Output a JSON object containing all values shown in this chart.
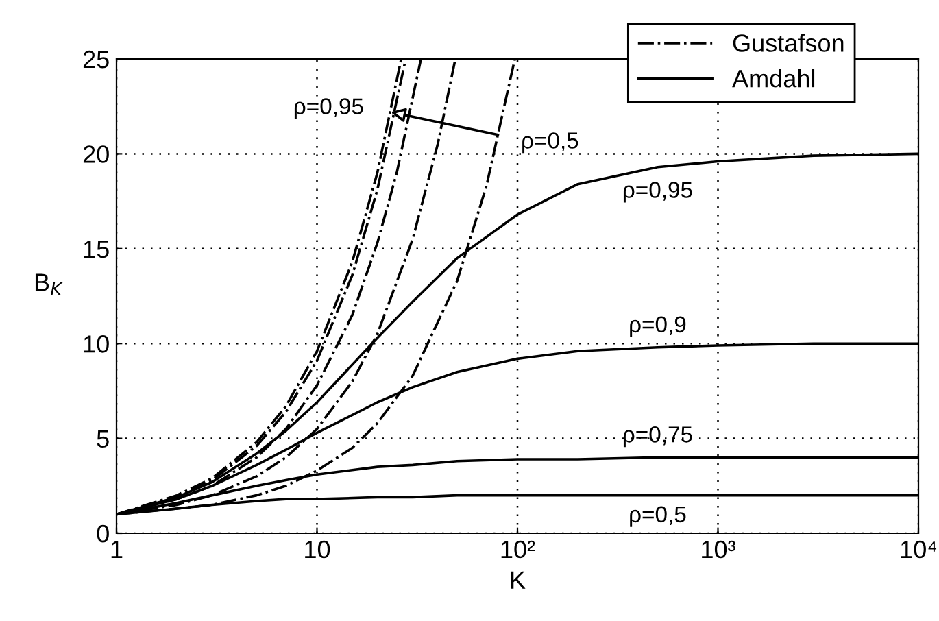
{
  "chart_data": {
    "type": "line",
    "xlabel": "K",
    "ylabel": "B$_{K}$",
    "log": "x",
    "grid": true,
    "legend": "top right",
    "marker": "none",
    "xlim": [
      1,
      10000
    ],
    "xticks": [
      1,
      10,
      {
        "value": 100,
        "label": "10²"
      },
      {
        "value": 1000,
        "label": "10³"
      },
      {
        "value": 10000,
        "label": "10⁴"
      }
    ],
    "ylim": [
      0,
      25
    ],
    "yticks": [
      0,
      5,
      10,
      15,
      20,
      25
    ],
    "series": [
      {
        "name": "Gustafson",
        "color": "#000000",
        "line_style": "dashdot",
        "x": [
          1,
          2,
          3,
          5,
          7,
          10,
          15,
          20,
          26.3
        ],
        "values": [
          1,
          2,
          2.9,
          4.8,
          6.7,
          9.6,
          14.3,
          19,
          25
        ]
      },
      {
        "color": "#000000",
        "line_style": "dashdot",
        "x": [
          1,
          2,
          3,
          5,
          7,
          10,
          15,
          20,
          27.7
        ],
        "values": [
          1,
          1.9,
          2.8,
          4.6,
          6.4,
          9.1,
          13.6,
          18.1,
          25
        ]
      },
      {
        "color": "#000000",
        "line_style": "dashdot",
        "x": [
          1,
          2,
          3,
          5,
          7,
          10,
          15,
          20,
          25,
          33
        ],
        "values": [
          1,
          1.8,
          2.5,
          4,
          5.5,
          7.8,
          11.5,
          15.3,
          19,
          25
        ]
      },
      {
        "color": "#000000",
        "line_style": "dashdot",
        "x": [
          1,
          2,
          3,
          5,
          7,
          10,
          15,
          20,
          30,
          40,
          49
        ],
        "values": [
          1,
          1.5,
          2,
          3,
          4,
          5.5,
          8,
          10.5,
          15.5,
          20.5,
          25
        ]
      },
      {
        "color": "#000000",
        "line_style": "dashdot",
        "x": [
          1,
          2,
          3,
          5,
          7,
          10,
          15,
          20,
          30,
          50,
          70,
          97
        ],
        "values": [
          1,
          1.3,
          1.5,
          2,
          2.5,
          3.3,
          4.5,
          5.8,
          8.3,
          13.3,
          18.3,
          25
        ]
      },
      {
        "name": "Amdahl",
        "color": "#000000",
        "line_style": "solid",
        "x": [
          1,
          2,
          3,
          5,
          7,
          10,
          20,
          30,
          50,
          100,
          200,
          500,
          1000,
          3000,
          10000
        ],
        "values": [
          1,
          1.9,
          2.7,
          4.2,
          5.4,
          6.9,
          10.3,
          12.2,
          14.5,
          16.8,
          18.4,
          19.3,
          19.6,
          19.9,
          20
        ]
      },
      {
        "color": "#000000",
        "line_style": "solid",
        "x": [
          1,
          2,
          3,
          5,
          7,
          10,
          20,
          30,
          50,
          100,
          200,
          500,
          1000,
          3000,
          10000
        ],
        "values": [
          1,
          1.8,
          2.5,
          3.6,
          4.4,
          5.3,
          6.9,
          7.7,
          8.5,
          9.2,
          9.6,
          9.8,
          9.9,
          10,
          10
        ]
      },
      {
        "color": "#000000",
        "line_style": "solid",
        "x": [
          1,
          2,
          3,
          5,
          7,
          10,
          20,
          30,
          50,
          100,
          200,
          500,
          1000,
          3000,
          10000
        ],
        "values": [
          1,
          1.6,
          2,
          2.5,
          2.8,
          3.1,
          3.5,
          3.6,
          3.8,
          3.9,
          3.9,
          4,
          4,
          4,
          4
        ]
      },
      {
        "color": "#000000",
        "line_style": "solid",
        "x": [
          1,
          2,
          3,
          5,
          7,
          10,
          20,
          30,
          50,
          100,
          200,
          500,
          1000,
          3000,
          10000
        ],
        "values": [
          1,
          1.3,
          1.5,
          1.7,
          1.8,
          1.8,
          1.9,
          1.9,
          2,
          2,
          2,
          2,
          2,
          2,
          2
        ]
      }
    ],
    "annotations": [
      {
        "text": "ρ=0,95",
        "x": 500,
        "y": 19.3
      },
      {
        "text": "ρ=0,9",
        "x": 500,
        "y": 9.8
      },
      {
        "text": "ρ=0,75",
        "x": 500,
        "y": 4
      },
      {
        "text": "ρ=0,5",
        "x": 500,
        "y": 2
      },
      {
        "text": "ρ=0,95",
        "x": 23.3,
        "y": 22.2
      },
      {
        "text": "ρ=0,5",
        "x": 80,
        "y": 21
      }
    ]
  }
}
